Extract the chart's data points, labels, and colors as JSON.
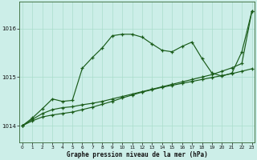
{
  "title": "Graphe pression niveau de la mer (hPa)",
  "bg_color": "#cceee8",
  "grid_color": "#aaddcc",
  "line_color": "#1a5c1a",
  "xlim": [
    -0.3,
    23.3
  ],
  "ylim": [
    1013.65,
    1016.55
  ],
  "yticks": [
    1014,
    1015,
    1016
  ],
  "xticks": [
    0,
    1,
    2,
    3,
    4,
    5,
    6,
    7,
    8,
    9,
    10,
    11,
    12,
    13,
    14,
    15,
    16,
    17,
    18,
    19,
    20,
    21,
    22,
    23
  ],
  "line1_x": [
    0,
    1,
    2,
    3,
    4,
    5,
    6,
    7,
    8,
    9,
    10,
    11,
    12,
    13,
    14,
    15,
    16,
    17,
    18,
    19,
    20,
    21,
    22,
    23
  ],
  "line1_y": [
    1014.0,
    1014.1,
    1014.18,
    1014.22,
    1014.25,
    1014.28,
    1014.33,
    1014.38,
    1014.44,
    1014.5,
    1014.57,
    1014.63,
    1014.69,
    1014.74,
    1014.79,
    1014.83,
    1014.87,
    1014.91,
    1014.95,
    1014.99,
    1015.03,
    1015.07,
    1015.12,
    1015.17
  ],
  "line2_x": [
    0,
    1,
    2,
    3,
    4,
    5,
    6,
    7,
    8,
    9,
    10,
    11,
    12,
    13,
    14,
    15,
    16,
    17,
    18,
    19,
    20,
    21,
    22,
    23
  ],
  "line2_y": [
    1014.0,
    1014.13,
    1014.25,
    1014.33,
    1014.37,
    1014.39,
    1014.43,
    1014.46,
    1014.5,
    1014.55,
    1014.6,
    1014.65,
    1014.7,
    1014.75,
    1014.8,
    1014.85,
    1014.9,
    1014.95,
    1015.0,
    1015.05,
    1015.12,
    1015.19,
    1015.28,
    1016.35
  ],
  "line3_x": [
    0,
    1,
    2,
    3,
    4,
    5,
    6,
    7,
    8,
    9,
    10,
    11,
    12,
    13,
    14,
    15,
    16,
    17,
    18,
    19,
    20,
    21,
    22,
    23
  ],
  "line3_y": [
    1014.0,
    1014.16,
    1014.35,
    1014.55,
    1014.5,
    1014.52,
    1015.18,
    1015.4,
    1015.6,
    1015.85,
    1015.88,
    1015.88,
    1015.82,
    1015.68,
    1015.55,
    1015.52,
    1015.63,
    1015.72,
    1015.38,
    1015.08,
    1015.02,
    1015.08,
    1015.52,
    1016.35
  ]
}
